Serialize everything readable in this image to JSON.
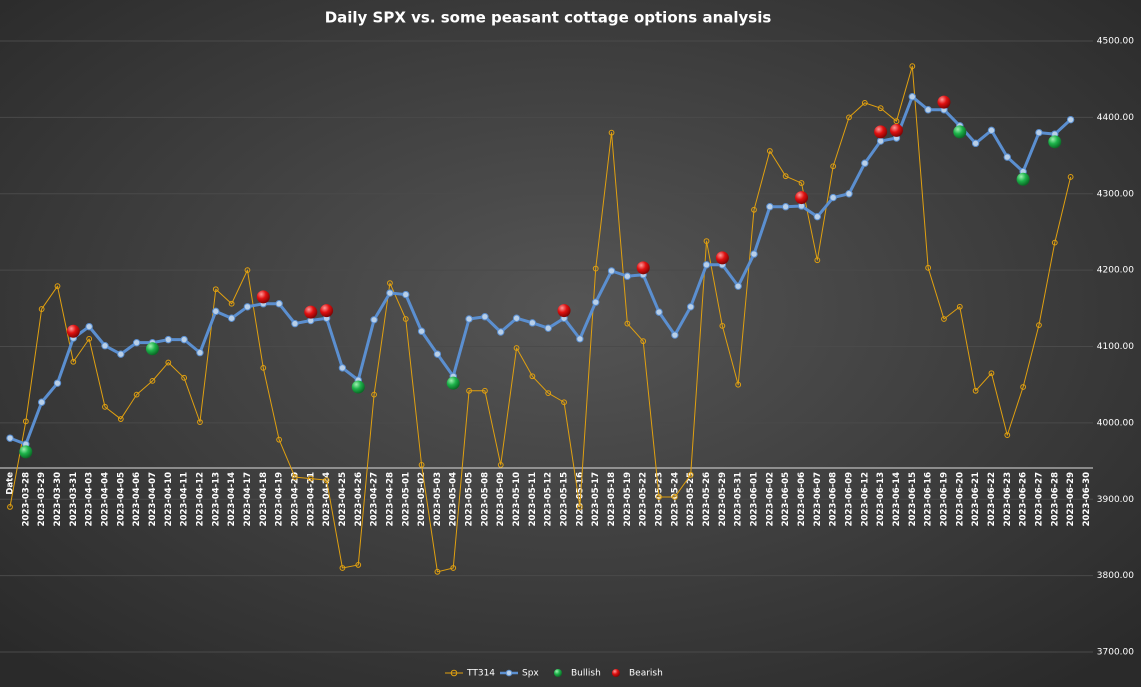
{
  "chart_data": {
    "type": "line",
    "title": "Daily SPX vs. some peasant cottage options analysis",
    "categories": [
      "Date",
      "2023-03-28",
      "2023-03-29",
      "2023-03-30",
      "2023-03-31",
      "2023-04-03",
      "2023-04-04",
      "2023-04-05",
      "2023-04-06",
      "2023-04-07",
      "2023-04-10",
      "2023-04-11",
      "2023-04-12",
      "2023-04-13",
      "2023-04-14",
      "2023-04-17",
      "2023-04-18",
      "2023-04-19",
      "2023-04-20",
      "2023-04-21",
      "2023-04-24",
      "2023-04-25",
      "2023-04-26",
      "2023-04-27",
      "2023-04-28",
      "2023-05-01",
      "2023-05-02",
      "2023-05-03",
      "2023-05-04",
      "2023-05-05",
      "2023-05-08",
      "2023-05-09",
      "2023-05-10",
      "2023-05-11",
      "2023-05-12",
      "2023-05-15",
      "2023-05-16",
      "2023-05-17",
      "2023-05-18",
      "2023-05-19",
      "2023-05-22",
      "2023-05-23",
      "2023-05-24",
      "2023-05-25",
      "2023-05-26",
      "2023-05-29",
      "2023-05-31",
      "2023-06-01",
      "2023-06-02",
      "2023-06-05",
      "2023-06-06",
      "2023-06-07",
      "2023-06-08",
      "2023-06-09",
      "2023-06-12",
      "2023-06-13",
      "2023-06-14",
      "2023-06-15",
      "2023-06-16",
      "2023-06-19",
      "2023-06-20",
      "2023-06-21",
      "2023-06-22",
      "2023-06-23",
      "2023-06-26",
      "2023-06-27",
      "2023-06-28",
      "2023-06-29",
      "2023-06-30"
    ],
    "series": [
      {
        "name": "TT314",
        "color": "#e0a010",
        "line": true,
        "values": [
          3890,
          4002,
          4149,
          4179,
          4080,
          4110,
          4021,
          4005,
          4037,
          4055,
          4079,
          4059,
          4001,
          4175,
          4156,
          4200,
          4072,
          3978,
          3929,
          3927,
          3925,
          3810,
          3814,
          4037,
          4183,
          4136,
          3945,
          3805,
          3810,
          4042,
          4042,
          3945,
          4098,
          4061,
          4039,
          4027,
          3890,
          4202,
          4380,
          4130,
          4107,
          3903,
          3903,
          3932,
          4238,
          4127,
          4050,
          4279,
          4356,
          4323,
          4314,
          4213,
          4336,
          4400,
          4419,
          4412,
          4395,
          4467,
          4203,
          4136,
          4152,
          4042,
          4065,
          3984,
          4047,
          4128,
          4236,
          4322,
          null
        ]
      },
      {
        "name": "Spx",
        "color": "#5b8fd0",
        "line": true,
        "values": [
          3980,
          3972,
          4027,
          4052,
          4111,
          4126,
          4101,
          4090,
          4105,
          4105,
          4109,
          4109,
          4092,
          4146,
          4137,
          4152,
          4156,
          4156,
          4130,
          4134,
          4137,
          4072,
          4056,
          4135,
          4170,
          4168,
          4120,
          4090,
          4061,
          4136,
          4139,
          4119,
          4137,
          4131,
          4124,
          4137,
          4110,
          4158,
          4199,
          4192,
          4194,
          4145,
          4115,
          4152,
          4207,
          4207,
          4179,
          4221,
          4283,
          4283,
          4284,
          4270,
          4295,
          4300,
          4340,
          4369,
          4373,
          4427,
          4410,
          4410,
          4389,
          4366,
          4383,
          4348,
          4329,
          4380,
          4378,
          4397,
          null
        ]
      },
      {
        "name": "Bullish",
        "color": "#1db34a",
        "line": false,
        "values": [
          null,
          3962,
          null,
          null,
          null,
          null,
          null,
          null,
          null,
          4097,
          null,
          null,
          null,
          null,
          null,
          null,
          null,
          null,
          null,
          null,
          null,
          null,
          4047,
          null,
          null,
          null,
          null,
          null,
          4052,
          null,
          null,
          null,
          null,
          null,
          null,
          null,
          null,
          null,
          null,
          null,
          null,
          null,
          null,
          null,
          null,
          null,
          null,
          null,
          null,
          null,
          null,
          null,
          null,
          null,
          null,
          null,
          null,
          null,
          null,
          null,
          4381,
          null,
          null,
          null,
          4319,
          null,
          4368,
          null,
          null
        ]
      },
      {
        "name": "Bearish",
        "color": "#e01010",
        "line": false,
        "values": [
          null,
          null,
          null,
          null,
          4120,
          null,
          null,
          null,
          null,
          null,
          null,
          null,
          null,
          null,
          null,
          null,
          4165,
          null,
          null,
          4145,
          4147,
          null,
          null,
          null,
          null,
          null,
          null,
          null,
          null,
          null,
          null,
          null,
          null,
          null,
          null,
          4147,
          null,
          null,
          null,
          null,
          4203,
          null,
          null,
          null,
          null,
          4216,
          null,
          null,
          null,
          null,
          4295,
          null,
          null,
          null,
          null,
          4381,
          4383,
          null,
          null,
          4420,
          null,
          null,
          null,
          null,
          null,
          null,
          null,
          null,
          null
        ]
      }
    ],
    "ylim": [
      3700,
      4500
    ],
    "yticks": [
      {
        "value": 3700,
        "label": "3700.00"
      },
      {
        "value": 3800,
        "label": "3800.00"
      },
      {
        "value": 3900,
        "label": "3900.00"
      },
      {
        "value": 4000,
        "label": "4000.00"
      },
      {
        "value": 4100,
        "label": "4100.00"
      },
      {
        "value": 4200,
        "label": "4200.00"
      },
      {
        "value": 4300,
        "label": "4300.00"
      },
      {
        "value": 4400,
        "label": "4400.00"
      },
      {
        "value": 4500,
        "label": "4500.00"
      }
    ],
    "grid": true,
    "legend": "bottom"
  }
}
